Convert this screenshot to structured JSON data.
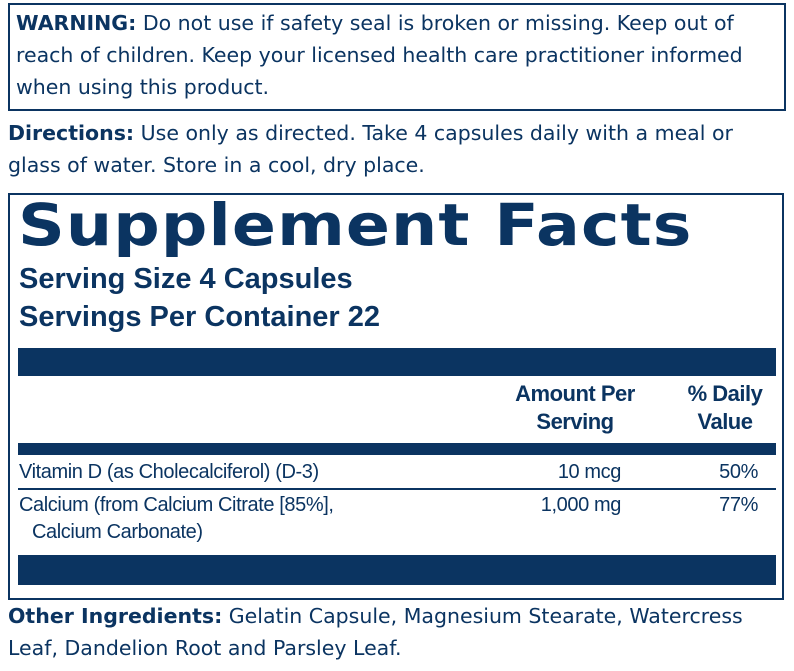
{
  "warning": {
    "label": "WARNING:",
    "text": " Do not use if safety seal is broken or missing. Keep out of reach of children. Keep your licensed health care practitioner informed when using this product."
  },
  "directions": {
    "label": "Directions:",
    "text": " Use only as directed. Take 4 capsules daily with a meal or glass of water. Store in a cool, dry place."
  },
  "facts": {
    "title": "Supplement Facts",
    "serving_size": "Serving Size 4 Capsules",
    "servings_per_container": "Servings Per Container 22",
    "col_amount": [
      "Amount Per",
      "Serving"
    ],
    "col_dv": [
      "% Daily",
      "Value"
    ],
    "rows": [
      {
        "name": "Vitamin D (as Cholecalciferol) (D-3)",
        "name2": "",
        "amount": "10 mcg",
        "dv": "50%"
      },
      {
        "name": "Calcium (from Calcium Citrate [85%],",
        "name2": "Calcium Carbonate)",
        "amount": "1,000 mg",
        "dv": "77%"
      }
    ]
  },
  "other": {
    "label": "Other Ingredients:",
    "text": " Gelatin Capsule, Magnesium Stearate, Watercress Leaf, Dandelion Root and Parsley Leaf."
  },
  "colors": {
    "navy": "#0b3461"
  }
}
